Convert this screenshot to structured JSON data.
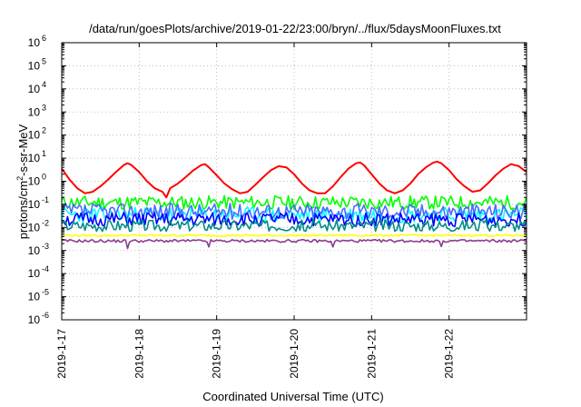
{
  "chart_data": {
    "type": "line",
    "title": "/data/run/goesPlots/archive/2019-01-22/23:00/bryn/../flux/5daysMoonFluxes.txt",
    "xlabel": "Coordinated Universal Time (UTC)",
    "ylabel_parts": {
      "base": "protons/cm",
      "sup": "2",
      "rest": "-s-sr-MeV"
    },
    "yscale": "log",
    "ylim_exp": [
      -6,
      6
    ],
    "ytick_exponents": [
      "-6",
      "-5",
      "-4",
      "-3",
      "-2",
      "-1",
      "0",
      "1",
      "2",
      "3",
      "4",
      "5",
      "6"
    ],
    "ytick_base": "10",
    "xlim_days": [
      0,
      6
    ],
    "x_tick_labels": [
      "2019-1-17",
      "2019-1-18",
      "2019-1-19",
      "2019-1-20",
      "2019-1-21",
      "2019-1-22"
    ],
    "grid": true,
    "series": [
      {
        "color": "#ff0000",
        "points": [
          [
            0.0,
            3.5
          ],
          [
            0.1,
            1.2
          ],
          [
            0.2,
            0.5
          ],
          [
            0.3,
            0.3
          ],
          [
            0.4,
            0.35
          ],
          [
            0.5,
            0.6
          ],
          [
            0.6,
            1.2
          ],
          [
            0.7,
            2.5
          ],
          [
            0.8,
            5
          ],
          [
            0.85,
            6
          ],
          [
            0.9,
            5
          ],
          [
            1.0,
            2.5
          ],
          [
            1.1,
            1.0
          ],
          [
            1.2,
            0.5
          ],
          [
            1.3,
            0.35
          ],
          [
            1.35,
            0.2
          ],
          [
            1.4,
            0.5
          ],
          [
            1.5,
            0.8
          ],
          [
            1.6,
            1.5
          ],
          [
            1.7,
            3
          ],
          [
            1.8,
            5
          ],
          [
            1.85,
            5.5
          ],
          [
            1.9,
            4
          ],
          [
            2.0,
            1.8
          ],
          [
            2.1,
            0.8
          ],
          [
            2.2,
            0.45
          ],
          [
            2.3,
            0.3
          ],
          [
            2.4,
            0.35
          ],
          [
            2.5,
            0.7
          ],
          [
            2.6,
            1.5
          ],
          [
            2.7,
            3
          ],
          [
            2.8,
            4.5
          ],
          [
            2.9,
            4
          ],
          [
            3.0,
            2
          ],
          [
            3.1,
            0.8
          ],
          [
            3.2,
            0.4
          ],
          [
            3.3,
            0.3
          ],
          [
            3.4,
            0.3
          ],
          [
            3.5,
            0.6
          ],
          [
            3.6,
            1.5
          ],
          [
            3.7,
            3.5
          ],
          [
            3.8,
            6
          ],
          [
            3.85,
            6.5
          ],
          [
            3.9,
            5
          ],
          [
            4.0,
            2
          ],
          [
            4.1,
            0.8
          ],
          [
            4.2,
            0.4
          ],
          [
            4.3,
            0.3
          ],
          [
            4.4,
            0.4
          ],
          [
            4.5,
            0.8
          ],
          [
            4.6,
            2
          ],
          [
            4.7,
            4
          ],
          [
            4.8,
            6.5
          ],
          [
            4.85,
            7
          ],
          [
            4.9,
            6
          ],
          [
            5.0,
            3
          ],
          [
            5.1,
            1.2
          ],
          [
            5.2,
            0.6
          ],
          [
            5.3,
            0.35
          ],
          [
            5.4,
            0.4
          ],
          [
            5.5,
            0.8
          ],
          [
            5.6,
            1.8
          ],
          [
            5.7,
            3.5
          ],
          [
            5.8,
            5.5
          ],
          [
            5.9,
            4.5
          ],
          [
            6.0,
            2.5
          ]
        ]
      },
      {
        "color": "#00ff00",
        "base": 0.12,
        "amp": 0.3,
        "seed": 11
      },
      {
        "color": "#00ffff",
        "base": 0.035,
        "amp": 0.35,
        "seed": 23
      },
      {
        "color": "#4a6cff",
        "base": 0.05,
        "amp": 0.35,
        "seed": 37
      },
      {
        "color": "#0000ff",
        "base": 0.022,
        "amp": 0.3,
        "seed": 51
      },
      {
        "color": "#008b8b",
        "base": 0.012,
        "amp": 0.25,
        "seed": 67
      },
      {
        "color": "#ffff00",
        "base": 0.0045,
        "amp": 0.04,
        "seed": 79
      },
      {
        "color": "#8b3a8b",
        "base": 0.0026,
        "amp": 0.06,
        "seed": 91,
        "dips": [
          0.85,
          1.9,
          3.5,
          4.9
        ]
      }
    ]
  }
}
